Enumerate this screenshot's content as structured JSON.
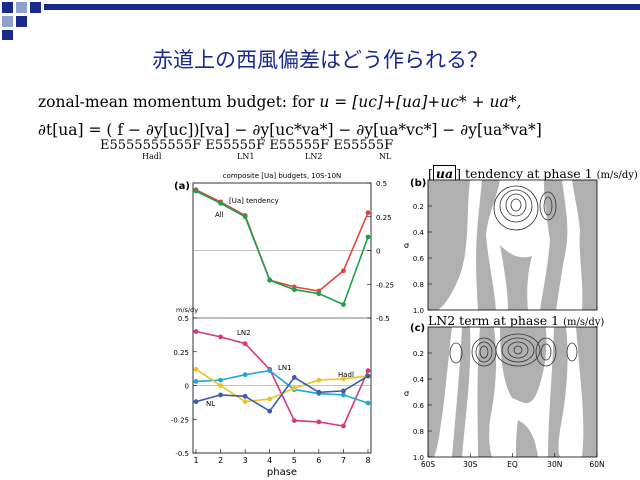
{
  "slide": {
    "title": "赤道上の西風偏差はどう作られる？",
    "eq1": {
      "prefix": "zonal-mean momentum budget: for",
      "rest": "u = [uc]+[ua]+uc* + ua*,"
    },
    "eq2": "∂t[ua] = ( f − ∂y[uc])[va] − ∂y[uc*va*] − ∂y[ua*vc*] − ∂y[ua*va*]",
    "braces": "E5555555555F  E55555F  E55555F  E55555F",
    "brace_labels": [
      "Hadl",
      "LN1",
      "LN2",
      "NL"
    ]
  },
  "colors": {
    "title": "#1a2a8c",
    "all": "#1ea14a",
    "tendency": "#e0463c",
    "ln2": "#d6397f",
    "ln1": "#1fa7d6",
    "hadl": "#f0c21e",
    "nl": "#3a5fa8",
    "shade": "#b0b0b0",
    "deco_dark": "#1a2a8c",
    "deco_light": "#8fa0cc"
  },
  "chart_data": [
    {
      "type": "line",
      "panel": "(a)",
      "title": "composite [Ua] budgets, 10S-10N",
      "xlabel": "phase",
      "x": [
        1,
        2,
        3,
        4,
        5,
        6,
        7,
        8
      ],
      "upper": {
        "ylim": [
          -0.5,
          0.5
        ],
        "yticks": [
          "0.5",
          "0.25",
          "0",
          "-0.25",
          "-0.5"
        ],
        "series": [
          {
            "name": "[Ua] tendency",
            "color": "tendency",
            "values": [
              0.45,
              0.36,
              0.26,
              -0.22,
              -0.27,
              -0.3,
              -0.15,
              0.28
            ]
          },
          {
            "name": "All",
            "color": "all",
            "values": [
              0.44,
              0.35,
              0.25,
              -0.22,
              -0.29,
              -0.32,
              -0.4,
              0.1
            ]
          }
        ]
      },
      "lower": {
        "ylabel": "m/s/dy",
        "ylim": [
          -0.5,
          0.5
        ],
        "yticks": [
          "0.5",
          "0.25",
          "0",
          "-0.25",
          "-0.5"
        ],
        "series": [
          {
            "name": "LN2",
            "color": "ln2",
            "values": [
              0.4,
              0.36,
              0.31,
              0.12,
              -0.26,
              -0.27,
              -0.3,
              0.11
            ]
          },
          {
            "name": "LN1",
            "color": "ln1",
            "values": [
              0.03,
              0.04,
              0.08,
              0.11,
              -0.03,
              -0.06,
              -0.07,
              -0.13
            ]
          },
          {
            "name": "Hadl",
            "color": "hadl",
            "values": [
              0.12,
              0.0,
              -0.12,
              -0.1,
              -0.02,
              0.04,
              0.05,
              0.07
            ]
          },
          {
            "name": "NL",
            "color": "nl",
            "values": [
              -0.12,
              -0.07,
              -0.08,
              -0.19,
              0.06,
              -0.05,
              -0.04,
              0.07
            ]
          }
        ]
      }
    },
    {
      "type": "heatmap",
      "panel": "(b)",
      "title_var": "ua",
      "title_rest": "tendency at phase 1",
      "unit": "(m/s/dy)",
      "ylabel": "σ",
      "yticks": [
        "0.2",
        "0.4",
        "0.6",
        "0.8",
        "1.0"
      ]
    },
    {
      "type": "heatmap",
      "panel": "(c)",
      "title": "LN2 term at phase 1",
      "unit": "(m/s/dy)",
      "ylabel": "σ",
      "yticks": [
        "0.2",
        "0.4",
        "0.6",
        "0.8",
        "1.0"
      ],
      "xticks": [
        "60S",
        "30S",
        "EQ",
        "30N",
        "60N"
      ]
    }
  ]
}
